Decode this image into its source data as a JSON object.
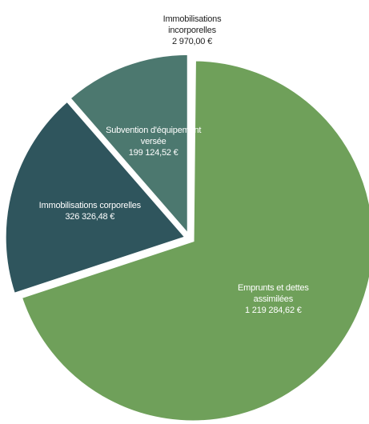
{
  "chart_data": {
    "type": "pie",
    "categories": [
      "Immobilisations incorporelles",
      "Emprunts et dettes assimilées",
      "Immobilisations corporelles",
      "Subvention d'équipement versée"
    ],
    "values": [
      2970.0,
      1219284.62,
      326326.48,
      199124.52
    ],
    "value_labels": [
      "2 970,00 €",
      "1 219 284,62 €",
      "326 326,48 €",
      "199 124,52 €"
    ],
    "colors": [
      "#8c9a3c",
      "#6fa05a",
      "#2f555d",
      "#4c786f"
    ]
  }
}
